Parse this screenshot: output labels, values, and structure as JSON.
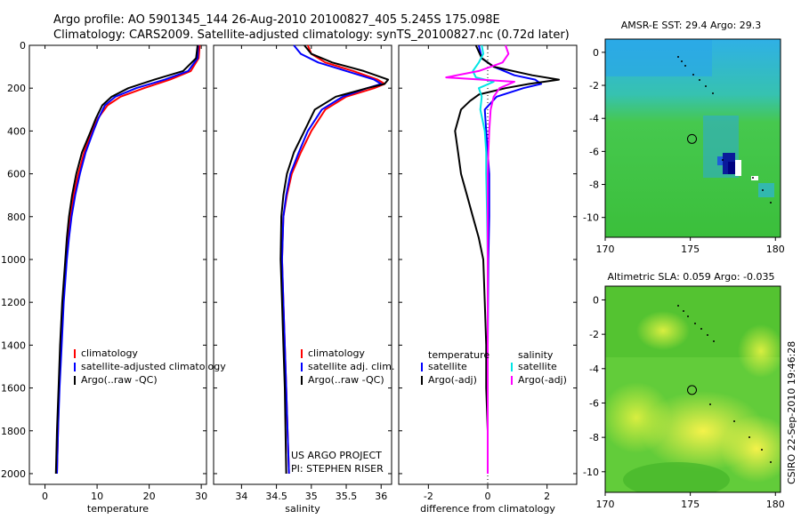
{
  "header": {
    "line1": "Argo profile: AO 5901345_144 26-Aug-2010 20100827_405 5.245S 175.098E",
    "line2": "Climatology: CARS2009. Satellite-adjusted climatology: synTS_20100827.nc (0.72d later)"
  },
  "side_label": "CSIRO 22-Sep-2010 19:46:28",
  "chart_data": [
    {
      "type": "line",
      "id": "temperature",
      "xlabel": "temperature",
      "xlim": [
        -3,
        31
      ],
      "ylim": [
        0,
        2050
      ],
      "y_inverted": true,
      "xticks": [
        0,
        10,
        20,
        30
      ],
      "yticks": [
        0,
        200,
        400,
        600,
        800,
        1000,
        1200,
        1400,
        1600,
        1800,
        2000
      ],
      "legend": [
        "climatology",
        "satellite-adjusted climatology",
        "Argo(..raw -QC)"
      ],
      "series": [
        {
          "name": "climatology",
          "color": "#ff0000",
          "depth": [
            0,
            60,
            120,
            160,
            200,
            240,
            280,
            340,
            400,
            500,
            600,
            700,
            800,
            900,
            1000,
            1200,
            1400,
            1600,
            1800,
            2000
          ],
          "values": [
            29.7,
            29.5,
            28.0,
            24.0,
            19.0,
            14.5,
            12.0,
            10.2,
            9.0,
            7.5,
            6.4,
            5.5,
            4.9,
            4.4,
            4.0,
            3.4,
            3.0,
            2.7,
            2.5,
            2.3
          ]
        },
        {
          "name": "satellite-adjusted climatology",
          "color": "#0000ff",
          "depth": [
            0,
            60,
            120,
            160,
            200,
            240,
            280,
            340,
            400,
            500,
            600,
            700,
            800,
            900,
            1000,
            1200,
            1400,
            1600,
            1800,
            2000
          ],
          "values": [
            29.4,
            29.3,
            27.5,
            23.0,
            17.5,
            13.5,
            11.5,
            10.3,
            9.3,
            7.8,
            6.7,
            5.8,
            5.1,
            4.6,
            4.2,
            3.6,
            3.2,
            2.8,
            2.5,
            2.3
          ]
        },
        {
          "name": "Argo(..raw -QC)",
          "color": "#000000",
          "depth": [
            0,
            60,
            120,
            160,
            200,
            240,
            280,
            340,
            400,
            500,
            600,
            700,
            800,
            900,
            1000,
            1200,
            1400,
            1600,
            1800,
            2000
          ],
          "values": [
            29.3,
            29.0,
            26.5,
            21.0,
            16.0,
            12.8,
            11.0,
            9.8,
            8.8,
            7.1,
            6.0,
            5.2,
            4.6,
            4.2,
            3.9,
            3.3,
            2.9,
            2.6,
            2.3,
            2.1
          ]
        }
      ]
    },
    {
      "type": "line",
      "id": "salinity",
      "xlabel": "salinity",
      "xlim": [
        33.6,
        36.15
      ],
      "ylim": [
        0,
        2050
      ],
      "y_inverted": true,
      "xticks": [
        34,
        34.5,
        35,
        35.5,
        36
      ],
      "xticklabels": [
        "34",
        "34.5",
        "35",
        "35.5",
        "36"
      ],
      "legend": [
        "climatology",
        "satellite adj. clim.",
        "Argo(..raw -QC)"
      ],
      "annotation": [
        "US ARGO PROJECT",
        "PI: STEPHEN RISER"
      ],
      "series": [
        {
          "name": "climatology",
          "color": "#ff0000",
          "depth": [
            0,
            40,
            80,
            120,
            160,
            180,
            200,
            240,
            300,
            400,
            500,
            600,
            700,
            800,
            1000,
            1200,
            1400,
            1600,
            1800,
            2000
          ],
          "values": [
            34.95,
            35.0,
            35.2,
            35.6,
            35.95,
            36.05,
            35.9,
            35.5,
            35.2,
            35.0,
            34.85,
            34.72,
            34.65,
            34.6,
            34.58,
            34.6,
            34.62,
            34.64,
            34.66,
            34.68
          ]
        },
        {
          "name": "satellite adj. clim.",
          "color": "#0000ff",
          "depth": [
            0,
            40,
            80,
            120,
            160,
            180,
            200,
            240,
            300,
            400,
            500,
            600,
            700,
            800,
            1000,
            1200,
            1400,
            1600,
            1800,
            2000
          ],
          "values": [
            34.75,
            34.85,
            35.1,
            35.5,
            35.9,
            36.0,
            35.8,
            35.45,
            35.15,
            34.95,
            34.82,
            34.7,
            34.64,
            34.6,
            34.58,
            34.6,
            34.62,
            34.64,
            34.66,
            34.68
          ]
        },
        {
          "name": "Argo(..raw -QC)",
          "color": "#000000",
          "depth": [
            0,
            40,
            80,
            120,
            160,
            180,
            200,
            240,
            300,
            400,
            500,
            600,
            700,
            800,
            1000,
            1200,
            1400,
            1600,
            1800,
            2000
          ],
          "values": [
            34.9,
            35.0,
            35.3,
            35.75,
            36.1,
            36.05,
            35.8,
            35.35,
            35.05,
            34.9,
            34.75,
            34.65,
            34.6,
            34.57,
            34.56,
            34.58,
            34.6,
            34.62,
            34.63,
            34.64
          ]
        }
      ]
    },
    {
      "type": "line",
      "id": "difference",
      "xlabel": "difference from climatology",
      "xlim": [
        -3,
        3
      ],
      "ylim": [
        0,
        2050
      ],
      "y_inverted": true,
      "xticks": [
        -2,
        0,
        2
      ],
      "legend_headers": [
        "temperature",
        "salinity"
      ],
      "legend": [
        "satellite",
        "Argo(-adj)",
        "satellite",
        "Argo(-adj)"
      ],
      "series": [
        {
          "name": "temperature satellite",
          "color": "#0000ff",
          "depth": [
            0,
            60,
            100,
            140,
            160,
            180,
            200,
            240,
            300,
            400,
            500,
            600,
            800,
            1000,
            1400,
            2000
          ],
          "values": [
            -0.3,
            -0.2,
            0.2,
            0.9,
            1.6,
            1.8,
            1.2,
            0.3,
            -0.1,
            -0.05,
            0.0,
            0.05,
            0.05,
            0.02,
            0.0,
            0.0
          ]
        },
        {
          "name": "temperature Argo(-adj)",
          "color": "#000000",
          "depth": [
            0,
            60,
            100,
            140,
            160,
            180,
            200,
            230,
            260,
            300,
            400,
            500,
            600,
            700,
            800,
            900,
            1000,
            1200,
            1400,
            1600,
            1800,
            2000
          ],
          "values": [
            -0.4,
            -0.2,
            0.2,
            1.5,
            2.4,
            1.4,
            0.6,
            -0.3,
            -0.6,
            -0.9,
            -1.1,
            -1.0,
            -0.9,
            -0.7,
            -0.5,
            -0.3,
            -0.15,
            -0.1,
            -0.05,
            -0.05,
            0.0,
            0.0
          ]
        },
        {
          "name": "salinity satellite",
          "color": "#00e5e5",
          "depth": [
            0,
            40,
            80,
            120,
            150,
            170,
            200,
            240,
            300,
            400,
            500,
            600,
            800,
            1000,
            1400,
            2000
          ],
          "values": [
            -0.2,
            -0.15,
            -0.3,
            -0.5,
            -0.4,
            0.2,
            -0.3,
            -0.2,
            -0.25,
            -0.1,
            -0.05,
            -0.05,
            -0.02,
            0.0,
            0.0,
            0.0
          ]
        },
        {
          "name": "salinity Argo(-adj)",
          "color": "#ff00ff",
          "depth": [
            0,
            40,
            80,
            120,
            150,
            170,
            200,
            240,
            300,
            400,
            500,
            600,
            800,
            1000,
            1400,
            2000
          ],
          "values": [
            0.6,
            0.7,
            0.5,
            -0.3,
            -1.4,
            0.9,
            0.4,
            0.2,
            0.1,
            0.05,
            0.02,
            0.0,
            0.0,
            0.0,
            0.0,
            0.0
          ]
        }
      ]
    },
    {
      "type": "heatmap",
      "id": "sst-map",
      "title": "AMSR-E SST: 29.4 Argo: 29.3",
      "xlim": [
        170,
        180.3
      ],
      "ylim": [
        -11.2,
        0.8
      ],
      "xticks": [
        170,
        175,
        180
      ],
      "yticks": [
        0,
        -2,
        -4,
        -6,
        -8,
        -10
      ],
      "argo_marker": {
        "lon": 175.098,
        "lat": -5.245
      }
    },
    {
      "type": "heatmap",
      "id": "sla-map",
      "title": "Altimetric SLA: 0.059 Argo: -0.035",
      "xlim": [
        170,
        180.3
      ],
      "ylim": [
        -11.2,
        0.8
      ],
      "xticks": [
        170,
        175,
        180
      ],
      "yticks": [
        0,
        -2,
        -4,
        -6,
        -8,
        -10
      ],
      "argo_marker": {
        "lon": 175.098,
        "lat": -5.245
      }
    }
  ]
}
